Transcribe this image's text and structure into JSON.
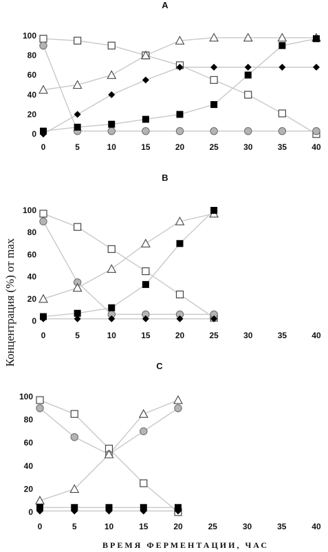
{
  "ylabel": "Концентрация (%) от max",
  "xlabel": "ВРЕМЯ  ФЕРМЕНТАЦИИ, ЧАС",
  "chart_data": [
    {
      "type": "line",
      "title": "A",
      "x_ticks": [
        0,
        5,
        10,
        15,
        20,
        25,
        30,
        35,
        40
      ],
      "y_ticks": [
        0,
        20,
        40,
        60,
        80,
        100
      ],
      "xlim": [
        0,
        40
      ],
      "ylim": [
        0,
        100
      ],
      "series": [
        {
          "marker": "open-square",
          "x": [
            0,
            5,
            10,
            15,
            20,
            25,
            30,
            35,
            40
          ],
          "values": [
            97,
            95,
            90,
            80,
            70,
            55,
            40,
            21,
            0
          ]
        },
        {
          "marker": "gray-circle",
          "x": [
            0,
            5,
            10,
            15,
            20,
            25,
            30,
            35,
            40
          ],
          "values": [
            90,
            3,
            3,
            3,
            3,
            3,
            3,
            3,
            3
          ]
        },
        {
          "marker": "open-triangle",
          "x": [
            0,
            5,
            10,
            15,
            20,
            25,
            30,
            35,
            40
          ],
          "values": [
            45,
            50,
            60,
            80,
            95,
            98,
            98,
            98,
            98
          ]
        },
        {
          "marker": "filled-diamond",
          "x": [
            0,
            5,
            10,
            15,
            20,
            25,
            30,
            35,
            40
          ],
          "values": [
            0,
            20,
            40,
            55,
            68,
            68,
            68,
            68,
            68
          ]
        },
        {
          "marker": "filled-square",
          "x": [
            0,
            5,
            10,
            15,
            20,
            25,
            30,
            35,
            40
          ],
          "values": [
            3,
            7,
            10,
            15,
            20,
            30,
            60,
            90,
            97
          ]
        }
      ]
    },
    {
      "type": "line",
      "title": "B",
      "x_ticks": [
        0,
        5,
        10,
        15,
        20,
        25,
        30,
        35,
        40
      ],
      "y_ticks": [
        0,
        20,
        40,
        60,
        80,
        100
      ],
      "xlim": [
        0,
        40
      ],
      "ylim": [
        0,
        100
      ],
      "series": [
        {
          "marker": "open-square",
          "x": [
            0,
            5,
            10,
            15,
            20,
            25
          ],
          "values": [
            97,
            85,
            65,
            45,
            24,
            3
          ]
        },
        {
          "marker": "gray-circle",
          "x": [
            0,
            5,
            10,
            15,
            20,
            25
          ],
          "values": [
            90,
            35,
            6,
            6,
            6,
            6
          ]
        },
        {
          "marker": "open-triangle",
          "x": [
            0,
            5,
            10,
            15,
            20,
            25
          ],
          "values": [
            20,
            30,
            47,
            70,
            90,
            97
          ]
        },
        {
          "marker": "filled-diamond",
          "x": [
            0,
            5,
            10,
            15,
            20,
            25
          ],
          "values": [
            2,
            2,
            2,
            2,
            2,
            2
          ]
        },
        {
          "marker": "filled-square",
          "x": [
            0,
            5,
            10,
            15,
            20,
            25
          ],
          "values": [
            4,
            7,
            12,
            33,
            70,
            100
          ]
        }
      ]
    },
    {
      "type": "line",
      "title": "C",
      "x_ticks": [
        0,
        5,
        10,
        15,
        20,
        25,
        30,
        35,
        40
      ],
      "y_ticks": [
        0,
        20,
        40,
        60,
        80,
        100
      ],
      "xlim": [
        0,
        40
      ],
      "ylim": [
        0,
        100
      ],
      "series": [
        {
          "marker": "open-square",
          "x": [
            0,
            5,
            10,
            15,
            20
          ],
          "values": [
            97,
            85,
            55,
            25,
            0
          ]
        },
        {
          "marker": "gray-circle",
          "x": [
            0,
            5,
            10,
            15,
            20
          ],
          "values": [
            90,
            65,
            50,
            70,
            90
          ]
        },
        {
          "marker": "open-triangle",
          "x": [
            0,
            5,
            10,
            15,
            20
          ],
          "values": [
            10,
            20,
            50,
            85,
            97
          ]
        },
        {
          "marker": "filled-diamond",
          "x": [
            0,
            5,
            10,
            15,
            20
          ],
          "values": [
            1,
            1,
            1,
            1,
            1
          ]
        },
        {
          "marker": "filled-square",
          "x": [
            0,
            5,
            10,
            15,
            20
          ],
          "values": [
            4,
            4,
            4,
            4,
            4
          ]
        }
      ]
    }
  ]
}
